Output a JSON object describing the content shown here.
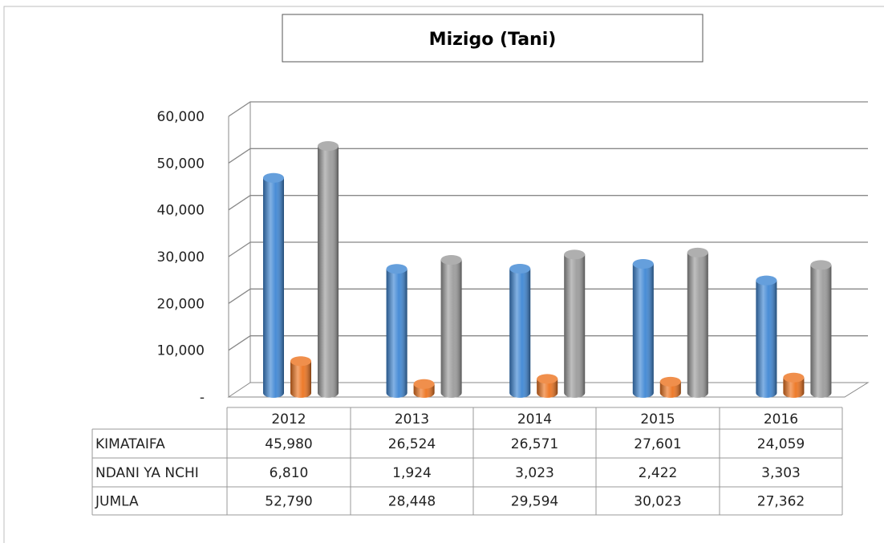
{
  "chart_data": {
    "type": "bar3d",
    "title": "Mizigo (Tani)",
    "categories": [
      "2012",
      "2013",
      "2014",
      "2015",
      "2016"
    ],
    "series": [
      {
        "name": "KIMATAIFA",
        "color": "#3f87d4",
        "values": [
          45980,
          26524,
          26571,
          27601,
          24059
        ],
        "value_labels": [
          "45,980",
          "26,524",
          "26,571",
          "27,601",
          "24,059"
        ]
      },
      {
        "name": "NDANI YA NCHI",
        "color": "#ed7420",
        "values": [
          6810,
          1924,
          3023,
          2422,
          3303
        ],
        "value_labels": [
          "6,810",
          "1,924",
          "3,023",
          "2,422",
          "3,303"
        ]
      },
      {
        "name": "JUMLA",
        "color": "#9c9c9c",
        "values": [
          52790,
          28448,
          29594,
          30023,
          27362
        ],
        "value_labels": [
          "52,790",
          "28,448",
          "29,594",
          "30,023",
          "27,362"
        ]
      }
    ],
    "ylim": [
      0,
      60000
    ],
    "yticks": [
      {
        "value": 0,
        "label": "-"
      },
      {
        "value": 10000,
        "label": "10,000"
      },
      {
        "value": 20000,
        "label": "20,000"
      },
      {
        "value": 30000,
        "label": "30,000"
      },
      {
        "value": 40000,
        "label": "40,000"
      },
      {
        "value": 50000,
        "label": "50,000"
      },
      {
        "value": 60000,
        "label": "60,000"
      }
    ],
    "grid": true
  }
}
